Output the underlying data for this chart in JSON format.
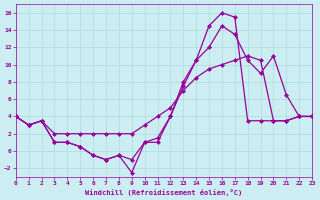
{
  "xlabel": "Windchill (Refroidissement éolien,°C)",
  "background_color": "#cceef2",
  "grid_color": "#aadddf",
  "line_color": "#990099",
  "xlim": [
    0,
    23
  ],
  "ylim": [
    -3,
    17
  ],
  "yticks": [
    -2,
    0,
    2,
    4,
    6,
    8,
    10,
    12,
    14,
    16
  ],
  "xticks": [
    0,
    1,
    2,
    3,
    4,
    5,
    6,
    7,
    8,
    9,
    10,
    11,
    12,
    13,
    14,
    15,
    16,
    17,
    18,
    19,
    20,
    21,
    22,
    23
  ],
  "curve1_x": [
    0,
    1,
    2,
    3,
    4,
    5,
    6,
    7,
    8,
    9,
    10,
    11,
    12,
    13,
    14,
    15,
    16,
    17,
    18,
    19,
    20,
    21,
    22,
    23
  ],
  "curve1_y": [
    4,
    3,
    3.5,
    1,
    1,
    0.5,
    -0.5,
    -1,
    -0.5,
    -2.5,
    1,
    1.5,
    4,
    8,
    10.5,
    14.5,
    16,
    15.5,
    3.5,
    3.5,
    3.5,
    3.5,
    4,
    4
  ],
  "curve2_x": [
    0,
    1,
    2,
    3,
    4,
    5,
    6,
    7,
    8,
    9,
    10,
    11,
    12,
    13,
    14,
    15,
    16,
    17,
    18,
    19,
    20,
    21,
    22,
    23
  ],
  "curve2_y": [
    4,
    3,
    3.5,
    1,
    1,
    0.5,
    -0.5,
    -1,
    -0.5,
    -1,
    1,
    1,
    4,
    7.5,
    10.5,
    12,
    14.5,
    13.5,
    10.5,
    9,
    11,
    6.5,
    4,
    4
  ],
  "curve3_x": [
    0,
    1,
    2,
    3,
    4,
    5,
    6,
    7,
    8,
    9,
    10,
    11,
    12,
    13,
    14,
    15,
    16,
    17,
    18,
    19,
    20,
    21,
    22,
    23
  ],
  "curve3_y": [
    4,
    3,
    3.5,
    2,
    2,
    2,
    2,
    2,
    2,
    2,
    3,
    4,
    5,
    7,
    8.5,
    9.5,
    10,
    10.5,
    11,
    10.5,
    3.5,
    3.5,
    4,
    4
  ]
}
